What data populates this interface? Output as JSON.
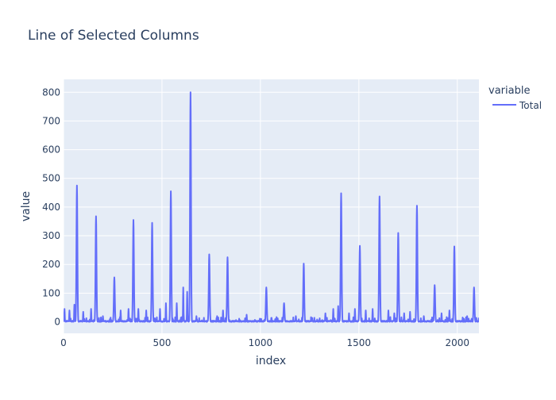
{
  "chart_data": {
    "type": "line",
    "title": "Line of Selected Columns",
    "xlabel": "index",
    "ylabel": "value",
    "xlim": [
      0,
      2110
    ],
    "ylim": [
      -40,
      845
    ],
    "x_ticks": [
      0,
      500,
      1000,
      1500,
      2000
    ],
    "y_ticks": [
      0,
      100,
      200,
      300,
      400,
      500,
      600,
      700,
      800
    ],
    "grid": true,
    "legend": {
      "title": "variable",
      "position": "top-right"
    },
    "series": [
      {
        "name": "Total",
        "color": "#636efa",
        "peaks": [
          [
            68,
            475
          ],
          [
            165,
            368
          ],
          [
            258,
            155
          ],
          [
            355,
            355
          ],
          [
            450,
            345
          ],
          [
            545,
            455
          ],
          [
            645,
            800
          ],
          [
            740,
            235
          ],
          [
            833,
            225
          ],
          [
            1030,
            120
          ],
          [
            1120,
            65
          ],
          [
            1220,
            203
          ],
          [
            1410,
            448
          ],
          [
            1505,
            265
          ],
          [
            1605,
            437
          ],
          [
            1700,
            310
          ],
          [
            1795,
            405
          ],
          [
            1885,
            128
          ],
          [
            1985,
            263
          ],
          [
            2085,
            120
          ]
        ],
        "minor_peaks": [
          [
            5,
            45
          ],
          [
            30,
            40
          ],
          [
            55,
            60
          ],
          [
            100,
            35
          ],
          [
            140,
            45
          ],
          [
            200,
            20
          ],
          [
            290,
            40
          ],
          [
            330,
            45
          ],
          [
            380,
            45
          ],
          [
            420,
            40
          ],
          [
            490,
            45
          ],
          [
            520,
            65
          ],
          [
            575,
            65
          ],
          [
            608,
            120
          ],
          [
            628,
            105
          ],
          [
            675,
            20
          ],
          [
            780,
            20
          ],
          [
            810,
            40
          ],
          [
            930,
            25
          ],
          [
            1180,
            20
          ],
          [
            1330,
            30
          ],
          [
            1370,
            45
          ],
          [
            1395,
            55
          ],
          [
            1450,
            30
          ],
          [
            1480,
            45
          ],
          [
            1535,
            40
          ],
          [
            1570,
            45
          ],
          [
            1650,
            40
          ],
          [
            1680,
            30
          ],
          [
            1730,
            30
          ],
          [
            1760,
            35
          ],
          [
            1830,
            20
          ],
          [
            1920,
            30
          ],
          [
            1960,
            40
          ],
          [
            2050,
            20
          ]
        ]
      }
    ]
  }
}
